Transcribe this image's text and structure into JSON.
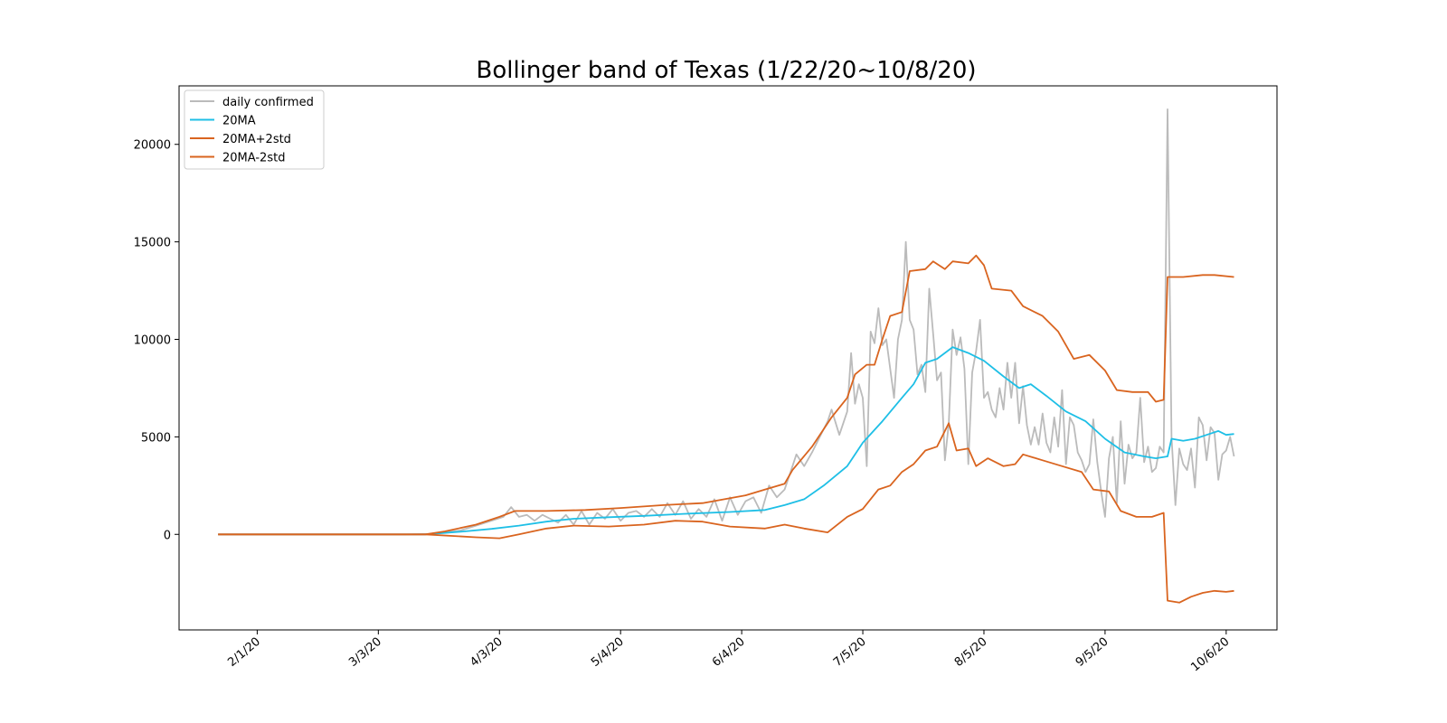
{
  "chart_data": {
    "type": "line",
    "title": "Bollinger band of Texas (1/22/20~10/8/20)",
    "xlabel": "",
    "ylabel": "",
    "x_ticks": [
      "2/1/20",
      "3/3/20",
      "4/3/20",
      "5/4/20",
      "6/4/20",
      "7/5/20",
      "8/5/20",
      "9/5/20",
      "10/6/20"
    ],
    "y_ticks": [
      "0",
      "5000",
      "10000",
      "15000",
      "20000"
    ],
    "ylim": [
      -4900,
      23000
    ],
    "xlim": [
      "1/12/20",
      "10/19/20"
    ],
    "grid": false,
    "legend_position": "top-left",
    "series": [
      {
        "name": "daily confirmed",
        "color": "#bbbbbb",
        "points": [
          [
            "1/22/20",
            0
          ],
          [
            "3/10/20",
            0
          ],
          [
            "3/16/20",
            20
          ],
          [
            "3/20/20",
            120
          ],
          [
            "3/24/20",
            200
          ],
          [
            "3/28/20",
            450
          ],
          [
            "4/1/20",
            700
          ],
          [
            "4/4/20",
            900
          ],
          [
            "4/6/20",
            1400
          ],
          [
            "4/8/20",
            900
          ],
          [
            "4/10/20",
            1000
          ],
          [
            "4/12/20",
            700
          ],
          [
            "4/14/20",
            1000
          ],
          [
            "4/16/20",
            800
          ],
          [
            "4/18/20",
            600
          ],
          [
            "4/20/20",
            1000
          ],
          [
            "4/22/20",
            500
          ],
          [
            "4/24/20",
            1200
          ],
          [
            "4/26/20",
            500
          ],
          [
            "4/28/20",
            1100
          ],
          [
            "4/30/20",
            800
          ],
          [
            "5/2/20",
            1300
          ],
          [
            "5/4/20",
            700
          ],
          [
            "5/6/20",
            1100
          ],
          [
            "5/8/20",
            1200
          ],
          [
            "5/10/20",
            900
          ],
          [
            "5/12/20",
            1300
          ],
          [
            "5/14/20",
            900
          ],
          [
            "5/16/20",
            1600
          ],
          [
            "5/18/20",
            1000
          ],
          [
            "5/20/20",
            1700
          ],
          [
            "5/22/20",
            800
          ],
          [
            "5/24/20",
            1300
          ],
          [
            "5/26/20",
            900
          ],
          [
            "5/28/20",
            1800
          ],
          [
            "5/30/20",
            700
          ],
          [
            "6/1/20",
            1900
          ],
          [
            "6/3/20",
            1000
          ],
          [
            "6/5/20",
            1700
          ],
          [
            "6/7/20",
            1900
          ],
          [
            "6/9/20",
            1100
          ],
          [
            "6/11/20",
            2500
          ],
          [
            "6/13/20",
            1900
          ],
          [
            "6/15/20",
            2300
          ],
          [
            "6/17/20",
            3500
          ],
          [
            "6/18/20",
            4100
          ],
          [
            "6/20/20",
            3500
          ],
          [
            "6/22/20",
            4200
          ],
          [
            "6/24/20",
            5000
          ],
          [
            "6/26/20",
            5800
          ],
          [
            "6/27/20",
            6400
          ],
          [
            "6/29/20",
            5100
          ],
          [
            "7/1/20",
            6300
          ],
          [
            "7/2/20",
            9300
          ],
          [
            "7/3/20",
            6700
          ],
          [
            "7/4/20",
            7700
          ],
          [
            "7/5/20",
            7000
          ],
          [
            "7/6/20",
            3500
          ],
          [
            "7/7/20",
            10400
          ],
          [
            "7/8/20",
            9800
          ],
          [
            "7/9/20",
            11600
          ],
          [
            "7/10/20",
            9700
          ],
          [
            "7/11/20",
            10000
          ],
          [
            "7/12/20",
            8500
          ],
          [
            "7/13/20",
            7000
          ],
          [
            "7/14/20",
            10000
          ],
          [
            "7/15/20",
            11000
          ],
          [
            "7/16/20",
            15000
          ],
          [
            "7/17/20",
            11000
          ],
          [
            "7/18/20",
            10500
          ],
          [
            "7/19/20",
            8200
          ],
          [
            "7/20/20",
            8700
          ],
          [
            "7/21/20",
            7300
          ],
          [
            "7/22/20",
            12600
          ],
          [
            "7/23/20",
            10300
          ],
          [
            "7/24/20",
            7900
          ],
          [
            "7/25/20",
            8300
          ],
          [
            "7/26/20",
            3800
          ],
          [
            "7/27/20",
            5700
          ],
          [
            "7/28/20",
            10500
          ],
          [
            "7/29/20",
            9200
          ],
          [
            "7/30/20",
            10100
          ],
          [
            "7/31/20",
            8500
          ],
          [
            "8/1/20",
            3600
          ],
          [
            "8/2/20",
            8300
          ],
          [
            "8/3/20",
            9400
          ],
          [
            "8/4/20",
            11000
          ],
          [
            "8/5/20",
            7000
          ],
          [
            "8/6/20",
            7300
          ],
          [
            "8/7/20",
            6400
          ],
          [
            "8/8/20",
            6000
          ],
          [
            "8/9/20",
            7500
          ],
          [
            "8/10/20",
            6400
          ],
          [
            "8/11/20",
            8800
          ],
          [
            "8/12/20",
            7000
          ],
          [
            "8/13/20",
            8800
          ],
          [
            "8/14/20",
            5700
          ],
          [
            "8/15/20",
            7600
          ],
          [
            "8/16/20",
            5600
          ],
          [
            "8/17/20",
            4600
          ],
          [
            "8/18/20",
            5500
          ],
          [
            "8/19/20",
            4600
          ],
          [
            "8/20/20",
            6200
          ],
          [
            "8/21/20",
            4700
          ],
          [
            "8/22/20",
            4200
          ],
          [
            "8/23/20",
            6000
          ],
          [
            "8/24/20",
            4500
          ],
          [
            "8/25/20",
            7400
          ],
          [
            "8/26/20",
            3600
          ],
          [
            "8/27/20",
            6000
          ],
          [
            "8/28/20",
            5600
          ],
          [
            "8/29/20",
            4200
          ],
          [
            "8/30/20",
            3800
          ],
          [
            "8/31/20",
            3200
          ],
          [
            "9/1/20",
            3600
          ],
          [
            "9/2/20",
            5900
          ],
          [
            "9/3/20",
            3700
          ],
          [
            "9/4/20",
            2200
          ],
          [
            "9/5/20",
            900
          ],
          [
            "9/6/20",
            3900
          ],
          [
            "9/7/20",
            5000
          ],
          [
            "9/8/20",
            1600
          ],
          [
            "9/9/20",
            5800
          ],
          [
            "9/10/20",
            2600
          ],
          [
            "9/11/20",
            4600
          ],
          [
            "9/12/20",
            3900
          ],
          [
            "9/13/20",
            4200
          ],
          [
            "9/14/20",
            7000
          ],
          [
            "9/15/20",
            3700
          ],
          [
            "9/16/20",
            4500
          ],
          [
            "9/17/20",
            3200
          ],
          [
            "9/18/20",
            3400
          ],
          [
            "9/19/20",
            4500
          ],
          [
            "9/20/20",
            4200
          ],
          [
            "9/21/20",
            21800
          ],
          [
            "9/22/20",
            5000
          ],
          [
            "9/23/20",
            1500
          ],
          [
            "9/24/20",
            4400
          ],
          [
            "9/25/20",
            3600
          ],
          [
            "9/26/20",
            3300
          ],
          [
            "9/27/20",
            4400
          ],
          [
            "9/28/20",
            2400
          ],
          [
            "9/29/20",
            6000
          ],
          [
            "9/30/20",
            5600
          ],
          [
            "10/1/20",
            3800
          ],
          [
            "10/2/20",
            5500
          ],
          [
            "10/3/20",
            5200
          ],
          [
            "10/4/20",
            2800
          ],
          [
            "10/5/20",
            4100
          ],
          [
            "10/6/20",
            4300
          ],
          [
            "10/7/20",
            5000
          ],
          [
            "10/8/20",
            4000
          ]
        ]
      },
      {
        "name": "20MA",
        "color": "#1ebfe6",
        "points": [
          [
            "1/22/20",
            0
          ],
          [
            "3/15/20",
            0
          ],
          [
            "3/25/20",
            150
          ],
          [
            "4/1/20",
            280
          ],
          [
            "4/8/20",
            450
          ],
          [
            "4/15/20",
            650
          ],
          [
            "4/22/20",
            800
          ],
          [
            "5/1/20",
            880
          ],
          [
            "5/10/20",
            950
          ],
          [
            "5/20/20",
            1050
          ],
          [
            "6/1/20",
            1150
          ],
          [
            "6/10/20",
            1250
          ],
          [
            "6/15/20",
            1500
          ],
          [
            "6/20/20",
            1800
          ],
          [
            "6/25/20",
            2500
          ],
          [
            "7/1/20",
            3500
          ],
          [
            "7/5/20",
            4700
          ],
          [
            "7/10/20",
            5800
          ],
          [
            "7/15/20",
            7000
          ],
          [
            "7/18/20",
            7700
          ],
          [
            "7/21/20",
            8800
          ],
          [
            "7/24/20",
            9000
          ],
          [
            "7/28/20",
            9600
          ],
          [
            "8/1/20",
            9300
          ],
          [
            "8/5/20",
            8900
          ],
          [
            "8/10/20",
            8100
          ],
          [
            "8/14/20",
            7500
          ],
          [
            "8/17/20",
            7700
          ],
          [
            "8/21/20",
            7100
          ],
          [
            "8/26/20",
            6300
          ],
          [
            "8/31/20",
            5800
          ],
          [
            "9/5/20",
            4900
          ],
          [
            "9/10/20",
            4200
          ],
          [
            "9/15/20",
            4000
          ],
          [
            "9/18/20",
            3900
          ],
          [
            "9/21/20",
            4000
          ],
          [
            "9/22/20",
            4900
          ],
          [
            "9/25/20",
            4800
          ],
          [
            "9/28/20",
            4900
          ],
          [
            "10/1/20",
            5100
          ],
          [
            "10/4/20",
            5300
          ],
          [
            "10/6/20",
            5100
          ],
          [
            "10/8/20",
            5150
          ]
        ]
      },
      {
        "name": "20MA+2std",
        "color": "#d9641f",
        "points": [
          [
            "1/22/20",
            0
          ],
          [
            "3/15/20",
            0
          ],
          [
            "3/20/20",
            150
          ],
          [
            "3/28/20",
            500
          ],
          [
            "4/3/20",
            900
          ],
          [
            "4/7/20",
            1200
          ],
          [
            "4/15/20",
            1200
          ],
          [
            "4/25/20",
            1250
          ],
          [
            "5/4/20",
            1350
          ],
          [
            "5/15/20",
            1500
          ],
          [
            "5/25/20",
            1600
          ],
          [
            "6/5/20",
            2000
          ],
          [
            "6/10/20",
            2300
          ],
          [
            "6/15/20",
            2600
          ],
          [
            "6/17/20",
            3300
          ],
          [
            "6/22/20",
            4500
          ],
          [
            "6/27/20",
            6000
          ],
          [
            "7/1/20",
            7000
          ],
          [
            "7/3/20",
            8200
          ],
          [
            "7/6/20",
            8700
          ],
          [
            "7/8/20",
            8700
          ],
          [
            "7/10/20",
            10000
          ],
          [
            "7/12/20",
            11200
          ],
          [
            "7/15/20",
            11400
          ],
          [
            "7/17/20",
            13500
          ],
          [
            "7/21/20",
            13600
          ],
          [
            "7/23/20",
            14000
          ],
          [
            "7/26/20",
            13600
          ],
          [
            "7/28/20",
            14000
          ],
          [
            "8/1/20",
            13900
          ],
          [
            "8/3/20",
            14300
          ],
          [
            "8/5/20",
            13800
          ],
          [
            "8/7/20",
            12600
          ],
          [
            "8/12/20",
            12500
          ],
          [
            "8/15/20",
            11700
          ],
          [
            "8/20/20",
            11200
          ],
          [
            "8/24/20",
            10400
          ],
          [
            "8/28/20",
            9000
          ],
          [
            "9/1/20",
            9200
          ],
          [
            "9/5/20",
            8400
          ],
          [
            "9/8/20",
            7400
          ],
          [
            "9/12/20",
            7300
          ],
          [
            "9/16/20",
            7300
          ],
          [
            "9/18/20",
            6800
          ],
          [
            "9/20/20",
            6900
          ],
          [
            "9/21/20",
            13200
          ],
          [
            "9/25/20",
            13200
          ],
          [
            "9/30/20",
            13300
          ],
          [
            "10/3/20",
            13300
          ],
          [
            "10/8/20",
            13200
          ]
        ]
      },
      {
        "name": "20MA-2std",
        "color": "#d9641f",
        "points": [
          [
            "1/22/20",
            0
          ],
          [
            "3/15/20",
            0
          ],
          [
            "3/28/20",
            -150
          ],
          [
            "4/3/20",
            -200
          ],
          [
            "4/8/20",
            0
          ],
          [
            "4/15/20",
            300
          ],
          [
            "4/22/20",
            450
          ],
          [
            "5/1/20",
            400
          ],
          [
            "5/10/20",
            500
          ],
          [
            "5/18/20",
            700
          ],
          [
            "5/25/20",
            650
          ],
          [
            "6/1/20",
            400
          ],
          [
            "6/10/20",
            300
          ],
          [
            "6/15/20",
            500
          ],
          [
            "6/20/20",
            300
          ],
          [
            "6/26/20",
            100
          ],
          [
            "7/1/20",
            900
          ],
          [
            "7/5/20",
            1300
          ],
          [
            "7/9/20",
            2300
          ],
          [
            "7/12/20",
            2500
          ],
          [
            "7/15/20",
            3200
          ],
          [
            "7/18/20",
            3600
          ],
          [
            "7/21/20",
            4300
          ],
          [
            "7/24/20",
            4500
          ],
          [
            "7/27/20",
            5700
          ],
          [
            "7/29/20",
            4300
          ],
          [
            "8/1/20",
            4400
          ],
          [
            "8/3/20",
            3500
          ],
          [
            "8/6/20",
            3900
          ],
          [
            "8/10/20",
            3500
          ],
          [
            "8/13/20",
            3600
          ],
          [
            "8/15/20",
            4100
          ],
          [
            "8/20/20",
            3800
          ],
          [
            "8/25/20",
            3500
          ],
          [
            "8/30/20",
            3200
          ],
          [
            "9/2/20",
            2300
          ],
          [
            "9/6/20",
            2200
          ],
          [
            "9/9/20",
            1200
          ],
          [
            "9/13/20",
            900
          ],
          [
            "9/17/20",
            900
          ],
          [
            "9/20/20",
            1100
          ],
          [
            "9/21/20",
            -3400
          ],
          [
            "9/24/20",
            -3500
          ],
          [
            "9/27/20",
            -3200
          ],
          [
            "9/30/20",
            -3000
          ],
          [
            "10/3/20",
            -2900
          ],
          [
            "10/6/20",
            -2950
          ],
          [
            "10/8/20",
            -2900
          ]
        ]
      }
    ]
  }
}
